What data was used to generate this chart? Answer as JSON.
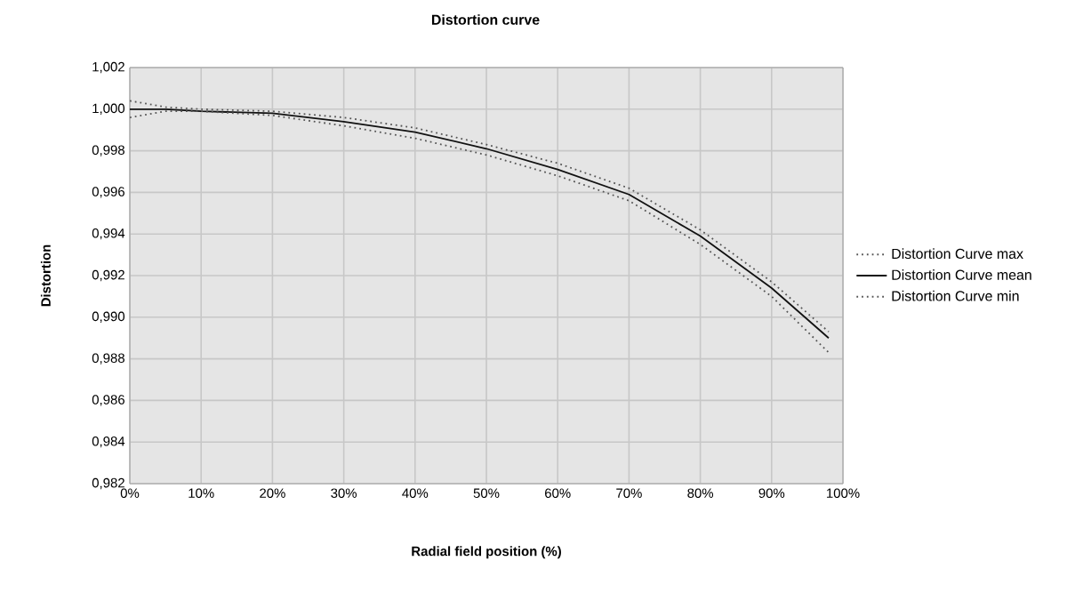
{
  "chart_data": {
    "type": "line",
    "title": "Distortion curve",
    "xlabel": "Radial field position (%)",
    "ylabel": "Distortion",
    "x": [
      0,
      5,
      10,
      20,
      30,
      40,
      50,
      60,
      70,
      80,
      90,
      98
    ],
    "series": [
      {
        "name": "Distortion Curve max",
        "color": "#555555",
        "line_style": "dotted",
        "values": [
          1.0004,
          1.0001,
          1.0,
          0.9999,
          0.9996,
          0.9991,
          0.9983,
          0.9974,
          0.9962,
          0.9942,
          0.9917,
          0.9893
        ]
      },
      {
        "name": "Distortion Curve mean",
        "color": "#111111",
        "line_style": "solid",
        "values": [
          1.0,
          1.0,
          0.9999,
          0.9998,
          0.9994,
          0.9989,
          0.9981,
          0.9971,
          0.9959,
          0.9939,
          0.9914,
          0.989
        ]
      },
      {
        "name": "Distortion Curve min",
        "color": "#555555",
        "line_style": "dotted",
        "values": [
          0.9996,
          0.9999,
          0.9999,
          0.9997,
          0.9992,
          0.9986,
          0.9978,
          0.9968,
          0.9956,
          0.9935,
          0.991,
          0.9883
        ]
      }
    ],
    "xlim": [
      0,
      100
    ],
    "xticks": [
      {
        "value": 0,
        "label": "0%"
      },
      {
        "value": 10,
        "label": "10%"
      },
      {
        "value": 20,
        "label": "20%"
      },
      {
        "value": 30,
        "label": "30%"
      },
      {
        "value": 40,
        "label": "40%"
      },
      {
        "value": 50,
        "label": "50%"
      },
      {
        "value": 60,
        "label": "60%"
      },
      {
        "value": 70,
        "label": "70%"
      },
      {
        "value": 80,
        "label": "80%"
      },
      {
        "value": 90,
        "label": "90%"
      },
      {
        "value": 100,
        "label": "100%"
      }
    ],
    "ylim": [
      0.982,
      1.002
    ],
    "yticks": [
      {
        "value": 0.982,
        "label": "0,982"
      },
      {
        "value": 0.984,
        "label": "0,984"
      },
      {
        "value": 0.986,
        "label": "0,986"
      },
      {
        "value": 0.988,
        "label": "0,988"
      },
      {
        "value": 0.99,
        "label": "0,990"
      },
      {
        "value": 0.992,
        "label": "0,992"
      },
      {
        "value": 0.994,
        "label": "0,994"
      },
      {
        "value": 0.996,
        "label": "0,996"
      },
      {
        "value": 0.998,
        "label": "0,998"
      },
      {
        "value": 1.0,
        "label": "1,000"
      },
      {
        "value": 1.002,
        "label": "1,002"
      }
    ],
    "grid": true,
    "legend": "right",
    "marker": "none"
  }
}
